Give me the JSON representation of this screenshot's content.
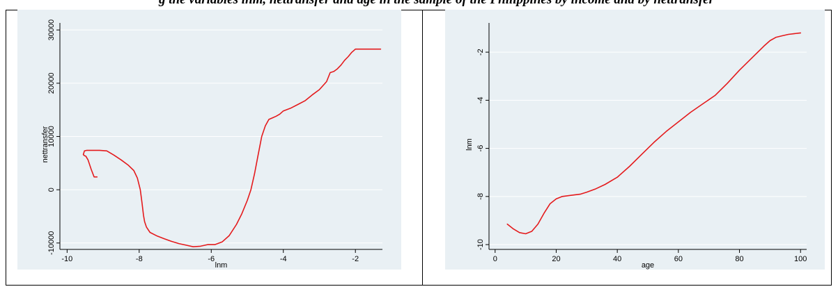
{
  "page": {
    "caption": "g the variables lnm, nettransfer and age in the sample of the Philippines by income and by nettransfer"
  },
  "colors": {
    "plot_background": "#e9f0f4",
    "series_line": "#e41a1c",
    "gridline": "#ffffff",
    "axis": "#000000"
  },
  "chart_data": [
    {
      "type": "line",
      "title": "",
      "xlabel": "lnm",
      "ylabel": "nettransfer",
      "xlim": [
        -10.2,
        -1.25
      ],
      "ylim": [
        -11200,
        30800
      ],
      "grid": true,
      "xticks": [
        -10,
        -8,
        -6,
        -4,
        -2
      ],
      "xtick_labels": [
        "-10",
        "-8",
        "-6",
        "-4",
        "-2"
      ],
      "yticks": [
        -10000,
        0,
        10000,
        20000,
        30000
      ],
      "ytick_labels": [
        "-10000",
        "0",
        "10000",
        "20000",
        "30000"
      ],
      "series": [
        {
          "x": [
            -9.17,
            -9.25,
            -9.33,
            -9.42,
            -9.48,
            -9.52,
            -9.55,
            -9.52,
            -9.45,
            -9.3,
            -9.1,
            -8.9,
            -8.7,
            -8.5,
            -8.3,
            -8.15,
            -8.05,
            -7.97,
            -7.92,
            -7.88,
            -7.85,
            -7.8,
            -7.7,
            -7.5,
            -7.3,
            -7.1,
            -6.9,
            -6.7,
            -6.5,
            -6.3,
            -6.1,
            -5.9,
            -5.7,
            -5.5,
            -5.3,
            -5.15,
            -5.0,
            -4.9,
            -4.8,
            -4.7,
            -4.6,
            -4.5,
            -4.4,
            -4.3,
            -4.2,
            -4.1,
            -4.0,
            -3.8,
            -3.6,
            -3.4,
            -3.2,
            -3.0,
            -2.8,
            -2.7,
            -2.6,
            -2.5,
            -2.4,
            -2.3,
            -2.2,
            -2.1,
            -2.0,
            -1.9,
            -1.8,
            -1.5,
            -1.3
          ],
          "y": [
            2400,
            2400,
            3800,
            5600,
            6300,
            6400,
            6600,
            7300,
            7400,
            7400,
            7400,
            7300,
            6500,
            5600,
            4600,
            3600,
            2200,
            0,
            -2500,
            -4800,
            -6000,
            -7000,
            -8000,
            -8700,
            -9200,
            -9700,
            -10100,
            -10400,
            -10700,
            -10600,
            -10300,
            -10300,
            -9800,
            -8600,
            -6500,
            -4500,
            -2000,
            0,
            3000,
            6500,
            10000,
            12000,
            13200,
            13500,
            13800,
            14200,
            14800,
            15300,
            16000,
            16700,
            17800,
            18800,
            20300,
            22000,
            22200,
            22700,
            23400,
            24300,
            25000,
            25800,
            26400,
            26400,
            26400,
            26400,
            26400
          ]
        }
      ]
    },
    {
      "type": "line",
      "title": "",
      "xlabel": "age",
      "ylabel": "lnm",
      "xlim": [
        -2,
        102
      ],
      "ylim": [
        -10.2,
        -0.9
      ],
      "grid": true,
      "xticks": [
        0,
        20,
        40,
        60,
        80,
        100
      ],
      "xtick_labels": [
        "0",
        "20",
        "40",
        "60",
        "80",
        "100"
      ],
      "yticks": [
        -10,
        -8,
        -6,
        -4,
        -2
      ],
      "ytick_labels": [
        "-10",
        "-8",
        "-6",
        "-4",
        "-2"
      ],
      "series": [
        {
          "x": [
            4,
            6,
            8,
            10,
            12,
            14,
            16,
            18,
            20,
            22,
            25,
            28,
            30,
            33,
            36,
            40,
            44,
            48,
            52,
            56,
            60,
            64,
            68,
            72,
            76,
            80,
            84,
            88,
            90,
            92,
            94,
            96,
            98,
            100
          ],
          "y": [
            -9.15,
            -9.35,
            -9.5,
            -9.55,
            -9.45,
            -9.15,
            -8.7,
            -8.3,
            -8.1,
            -8.0,
            -7.95,
            -7.9,
            -7.82,
            -7.68,
            -7.5,
            -7.2,
            -6.75,
            -6.25,
            -5.75,
            -5.3,
            -4.9,
            -4.5,
            -4.15,
            -3.8,
            -3.3,
            -2.75,
            -2.25,
            -1.75,
            -1.52,
            -1.38,
            -1.32,
            -1.26,
            -1.23,
            -1.2
          ]
        }
      ]
    }
  ]
}
